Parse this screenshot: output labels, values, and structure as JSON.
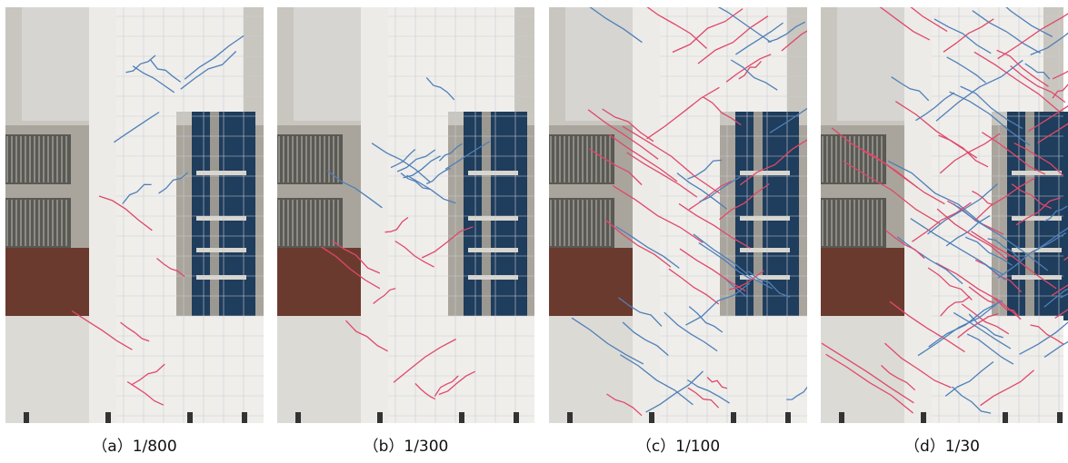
{
  "panels": [
    {
      "caption": "（a）1/800"
    },
    {
      "caption": "（b）1/300"
    },
    {
      "caption": "（c）1/100"
    },
    {
      "caption": "（d）1/30"
    }
  ]
}
